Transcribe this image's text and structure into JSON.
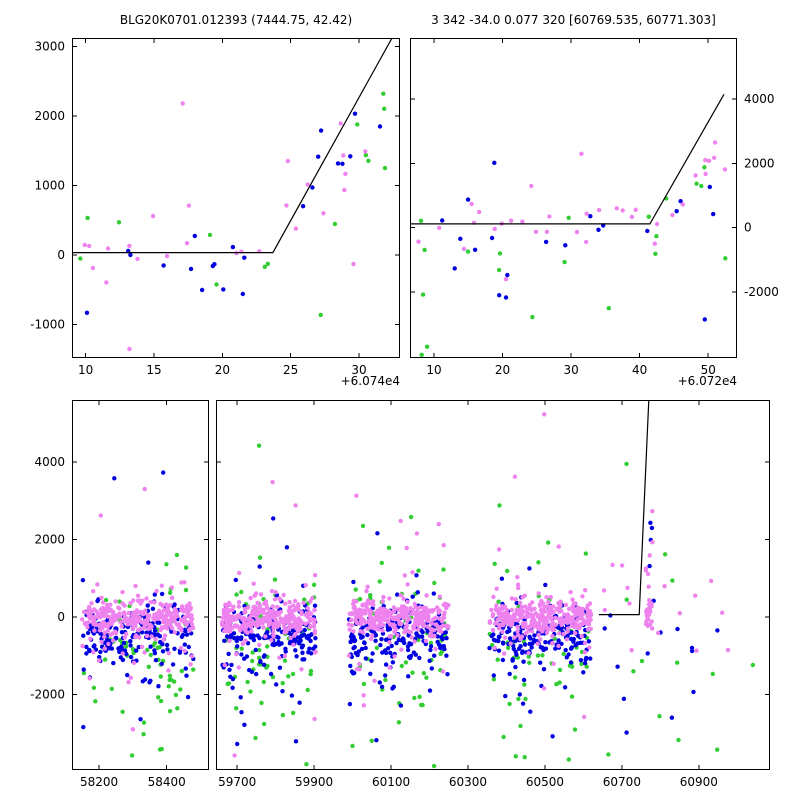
{
  "figure": {
    "background": "#ffffff"
  },
  "series_colors": {
    "blue": "#0000e0",
    "green": "#32cd32",
    "violet": "#ee82ee"
  },
  "chart_data": [
    {
      "id": "top-left",
      "type": "scatter",
      "title": "BLG20K0701.012393 (7444.75, 42.42)",
      "x_offset_label": "+6.074e4",
      "xlim": [
        9.0,
        33.0
      ],
      "ylim": [
        -1480,
        3120
      ],
      "xticks": [
        10,
        15,
        20,
        25,
        30
      ],
      "yticks": [
        -1000,
        0,
        1000,
        2000,
        3000
      ],
      "ytick_side": "left",
      "model_line": [
        [
          9.0,
          35
        ],
        [
          23.7,
          35
        ],
        [
          32.5,
          3150
        ]
      ],
      "clusters": [
        {
          "s": "blue",
          "n": 11,
          "x": [
            9.3,
            23.5
          ],
          "y": 0,
          "sd": 330
        },
        {
          "s": "green",
          "n": 7,
          "x": [
            9.6,
            23.5
          ],
          "y": 150,
          "sd": 420
        },
        {
          "s": "violet",
          "n": 14,
          "x": [
            9.1,
            23.5
          ],
          "y": 120,
          "sd": 330
        },
        {
          "s": "blue",
          "n": 9,
          "x": [
            24,
            32.4
          ],
          "y": [
            500,
            2300
          ],
          "sd": 420
        },
        {
          "s": "green",
          "n": 6,
          "x": [
            24.5,
            32.4
          ],
          "y": [
            300,
            2100
          ],
          "sd": 550
        },
        {
          "s": "violet",
          "n": 10,
          "x": [
            24,
            32.5
          ],
          "y": [
            400,
            2400
          ],
          "sd": 450
        }
      ],
      "points": [
        {
          "s": "violet",
          "x": 17.1,
          "y": 2180
        },
        {
          "s": "violet",
          "x": 13.2,
          "y": -1350
        },
        {
          "s": "blue",
          "x": 10.1,
          "y": -830
        },
        {
          "s": "green",
          "x": 27.2,
          "y": -860
        },
        {
          "s": "violet",
          "x": 29.6,
          "y": -130
        },
        {
          "s": "green",
          "x": 31.9,
          "y": 1250
        },
        {
          "s": "blue",
          "x": 21.5,
          "y": -560
        },
        {
          "s": "violet",
          "x": 24.8,
          "y": 1350
        }
      ]
    },
    {
      "id": "top-right",
      "type": "scatter",
      "title": "3 342 -34.0 0.077 320 [60769.535, 60771.303]",
      "x_offset_label": "+6.072e4",
      "xlim": [
        6.5,
        54.2
      ],
      "ylim": [
        -4050,
        5900
      ],
      "xticks": [
        10,
        20,
        30,
        40,
        50
      ],
      "yticks": [
        -2000,
        0,
        2000,
        4000
      ],
      "ytick_side": "right",
      "model_line": [
        [
          6.5,
          120
        ],
        [
          41.5,
          120
        ],
        [
          52.3,
          4150
        ]
      ],
      "clusters": [
        {
          "s": "blue",
          "n": 16,
          "x": [
            7.5,
            43
          ],
          "y": -100,
          "sd": 750
        },
        {
          "s": "green",
          "n": 12,
          "x": [
            7.5,
            43
          ],
          "y": -400,
          "sd": 1300
        },
        {
          "s": "violet",
          "n": 24,
          "x": [
            7.5,
            43
          ],
          "y": 150,
          "sd": 450
        },
        {
          "s": "blue",
          "n": 4,
          "x": [
            43,
            52
          ],
          "y": [
            200,
            1900
          ],
          "sd": 600
        },
        {
          "s": "green",
          "n": 4,
          "x": [
            43,
            52
          ],
          "y": [
            0,
            1600
          ],
          "sd": 700
        },
        {
          "s": "violet",
          "n": 8,
          "x": [
            43,
            52.5
          ],
          "y": [
            300,
            2400
          ],
          "sd": 450
        }
      ],
      "points": [
        {
          "s": "violet",
          "x": 31.5,
          "y": 2300
        },
        {
          "s": "green",
          "x": 9.0,
          "y": -3700
        },
        {
          "s": "green",
          "x": 8.2,
          "y": -3950
        },
        {
          "s": "blue",
          "x": 49.5,
          "y": -2850
        },
        {
          "s": "violet",
          "x": 20.5,
          "y": -1600
        },
        {
          "s": "green",
          "x": 35.5,
          "y": -2500
        },
        {
          "s": "violet",
          "x": 51.0,
          "y": 2650
        },
        {
          "s": "green",
          "x": 52.5,
          "y": -950
        }
      ]
    },
    {
      "id": "bottom-left",
      "type": "scatter",
      "xlim": [
        58120,
        58525
      ],
      "ylim": [
        -3950,
        5600
      ],
      "xticks": [
        58200,
        58400
      ],
      "yticks": [
        -2000,
        0,
        2000,
        4000
      ],
      "ytick_side": "left",
      "clusters": [
        {
          "s": "green",
          "n": 50,
          "x": [
            58150,
            58480
          ],
          "y": -800,
          "sd": 1100
        },
        {
          "s": "green",
          "n": 11,
          "x": [
            58150,
            58480
          ],
          "y": -400,
          "sd": 2200
        },
        {
          "s": "blue",
          "n": 140,
          "x": [
            58150,
            58480
          ],
          "y": -430,
          "sd": 340
        },
        {
          "s": "blue",
          "n": 45,
          "x": [
            58150,
            58480
          ],
          "y": -700,
          "sd": 800
        },
        {
          "s": "blue",
          "n": 7,
          "x": [
            58150,
            58480
          ],
          "y": -400,
          "sd": 1700
        },
        {
          "s": "violet",
          "n": 250,
          "x": [
            58150,
            58480
          ],
          "y": -30,
          "sd": 200
        },
        {
          "s": "violet",
          "n": 55,
          "x": [
            58150,
            58480
          ],
          "y": -60,
          "sd": 600
        },
        {
          "s": "violet",
          "n": 9,
          "x": [
            58150,
            58480
          ],
          "y": 0,
          "sd": 1600
        }
      ],
      "points": [
        {
          "s": "blue",
          "x": 58245,
          "y": 3580
        },
        {
          "s": "violet",
          "x": 58205,
          "y": 2620
        },
        {
          "s": "violet",
          "x": 58335,
          "y": 3300
        },
        {
          "s": "violet",
          "x": 58300,
          "y": -2900
        },
        {
          "s": "green",
          "x": 58380,
          "y": -3420
        },
        {
          "s": "green",
          "x": 58430,
          "y": 1600
        }
      ]
    },
    {
      "id": "bottom-right",
      "type": "scatter",
      "xlim": [
        59645,
        61085
      ],
      "ylim": [
        -3950,
        5600
      ],
      "xticks": [
        59700,
        59900,
        60100,
        60300,
        60500,
        60700,
        60900
      ],
      "yticks": [
        -2000,
        0,
        2000,
        4000
      ],
      "ytick_side": "none",
      "model_line": [
        [
          60640,
          60
        ],
        [
          60745,
          60
        ],
        [
          60770,
          5600
        ]
      ],
      "clusters": [
        {
          "s": "green",
          "n": 50,
          "x": [
            59660,
            59905
          ],
          "y": -800,
          "sd": 1100
        },
        {
          "s": "green",
          "n": 11,
          "x": [
            59660,
            59905
          ],
          "y": -400,
          "sd": 2200
        },
        {
          "s": "blue",
          "n": 140,
          "x": [
            59660,
            59905
          ],
          "y": -430,
          "sd": 340
        },
        {
          "s": "blue",
          "n": 45,
          "x": [
            59660,
            59905
          ],
          "y": -700,
          "sd": 800
        },
        {
          "s": "blue",
          "n": 7,
          "x": [
            59660,
            59905
          ],
          "y": -400,
          "sd": 1700
        },
        {
          "s": "violet",
          "n": 250,
          "x": [
            59660,
            59905
          ],
          "y": -30,
          "sd": 200
        },
        {
          "s": "violet",
          "n": 55,
          "x": [
            59660,
            59905
          ],
          "y": -60,
          "sd": 600
        },
        {
          "s": "violet",
          "n": 9,
          "x": [
            59660,
            59905
          ],
          "y": 0,
          "sd": 1600
        },
        {
          "s": "green",
          "n": 50,
          "x": [
            59990,
            60250
          ],
          "y": -800,
          "sd": 1100
        },
        {
          "s": "green",
          "n": 11,
          "x": [
            59990,
            60250
          ],
          "y": -400,
          "sd": 2200
        },
        {
          "s": "blue",
          "n": 140,
          "x": [
            59990,
            60250
          ],
          "y": -430,
          "sd": 340
        },
        {
          "s": "blue",
          "n": 45,
          "x": [
            59990,
            60250
          ],
          "y": -700,
          "sd": 800
        },
        {
          "s": "blue",
          "n": 7,
          "x": [
            59990,
            60250
          ],
          "y": -400,
          "sd": 1700
        },
        {
          "s": "violet",
          "n": 250,
          "x": [
            59990,
            60250
          ],
          "y": -30,
          "sd": 200
        },
        {
          "s": "violet",
          "n": 55,
          "x": [
            59990,
            60250
          ],
          "y": -60,
          "sd": 600
        },
        {
          "s": "violet",
          "n": 9,
          "x": [
            59990,
            60250
          ],
          "y": 0,
          "sd": 1600
        },
        {
          "s": "green",
          "n": 50,
          "x": [
            60355,
            60620
          ],
          "y": -800,
          "sd": 1100
        },
        {
          "s": "green",
          "n": 11,
          "x": [
            60355,
            60620
          ],
          "y": -400,
          "sd": 2200
        },
        {
          "s": "blue",
          "n": 140,
          "x": [
            60355,
            60620
          ],
          "y": -430,
          "sd": 340
        },
        {
          "s": "blue",
          "n": 45,
          "x": [
            60355,
            60620
          ],
          "y": -700,
          "sd": 800
        },
        {
          "s": "blue",
          "n": 7,
          "x": [
            60355,
            60620
          ],
          "y": -400,
          "sd": 1700
        },
        {
          "s": "violet",
          "n": 250,
          "x": [
            60355,
            60620
          ],
          "y": -30,
          "sd": 200
        },
        {
          "s": "violet",
          "n": 55,
          "x": [
            60355,
            60620
          ],
          "y": -60,
          "sd": 600
        },
        {
          "s": "violet",
          "n": 9,
          "x": [
            60355,
            60620
          ],
          "y": 0,
          "sd": 1600
        },
        {
          "s": "violet",
          "n": 13,
          "x": [
            60650,
            60860
          ],
          "y": 250,
          "sd": 900
        },
        {
          "s": "blue",
          "n": 9,
          "x": [
            60650,
            60860
          ],
          "y": -700,
          "sd": 1000
        },
        {
          "s": "green",
          "n": 8,
          "x": [
            60660,
            60855
          ],
          "y": -600,
          "sd": 1700
        },
        {
          "s": "violet",
          "n": 26,
          "x": [
            60762,
            60780
          ],
          "y": 80,
          "sd": 150
        },
        {
          "s": "violet",
          "n": 4,
          "x": [
            60768,
            60781
          ],
          "y": [
            900,
            2400
          ],
          "sd": 250
        },
        {
          "s": "blue",
          "n": 3,
          "x": [
            60770,
            60782
          ],
          "y": [
            1200,
            2500
          ],
          "sd": 200
        },
        {
          "s": "violet",
          "n": 5,
          "x": [
            60880,
            61060
          ],
          "y": 0,
          "sd": 800
        },
        {
          "s": "blue",
          "n": 4,
          "x": [
            60880,
            61060
          ],
          "y": -800,
          "sd": 900
        },
        {
          "s": "green",
          "n": 3,
          "x": [
            60900,
            61050
          ],
          "y": -1500,
          "sd": 1500
        }
      ],
      "points": [
        {
          "s": "green",
          "x": 59757,
          "y": 4420
        },
        {
          "s": "violet",
          "x": 59792,
          "y": 3480
        },
        {
          "s": "violet",
          "x": 59852,
          "y": 2880
        },
        {
          "s": "blue",
          "x": 59700,
          "y": -3280
        },
        {
          "s": "green",
          "x": 59880,
          "y": -3800
        },
        {
          "s": "violet",
          "x": 60010,
          "y": 3130
        },
        {
          "s": "violet",
          "x": 60125,
          "y": 2480
        },
        {
          "s": "green",
          "x": 60152,
          "y": 2580
        },
        {
          "s": "blue",
          "x": 60062,
          "y": -3180
        },
        {
          "s": "green",
          "x": 60212,
          "y": -3850
        },
        {
          "s": "violet",
          "x": 60498,
          "y": 5230
        },
        {
          "s": "violet",
          "x": 60422,
          "y": 3620
        },
        {
          "s": "green",
          "x": 60382,
          "y": 2880
        },
        {
          "s": "blue",
          "x": 60520,
          "y": -3080
        },
        {
          "s": "green",
          "x": 60562,
          "y": -3680
        },
        {
          "s": "violet",
          "x": 60602,
          "y": -2580
        },
        {
          "s": "violet",
          "x": 60779,
          "y": 2730
        },
        {
          "s": "blue",
          "x": 60774,
          "y": 2430
        },
        {
          "s": "green",
          "x": 60712,
          "y": 3950
        },
        {
          "s": "green",
          "x": 60665,
          "y": -3550
        },
        {
          "s": "blue",
          "x": 60830,
          "y": -2600
        }
      ]
    }
  ]
}
